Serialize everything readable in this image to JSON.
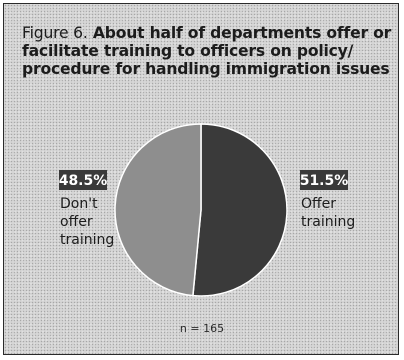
{
  "figure": {
    "label": "Figure 6.",
    "title": "About half of departments offer or facilitate training to officers on policy/ procedure for handling immigration issues"
  },
  "chart_data": {
    "type": "pie",
    "title": "About half of departments offer or facilitate training to officers on policy/ procedure for handling immigration issues",
    "slices": [
      {
        "label_lines": [
          "Offer",
          "training"
        ],
        "value": 51.5,
        "display": "51.5%",
        "color": "#3a3a3a"
      },
      {
        "label_lines": [
          "Don't",
          "offer",
          "training"
        ],
        "value": 48.5,
        "display": "48.5%",
        "color": "#8e8e8e"
      }
    ],
    "unit": "%",
    "note": "n = 165"
  }
}
